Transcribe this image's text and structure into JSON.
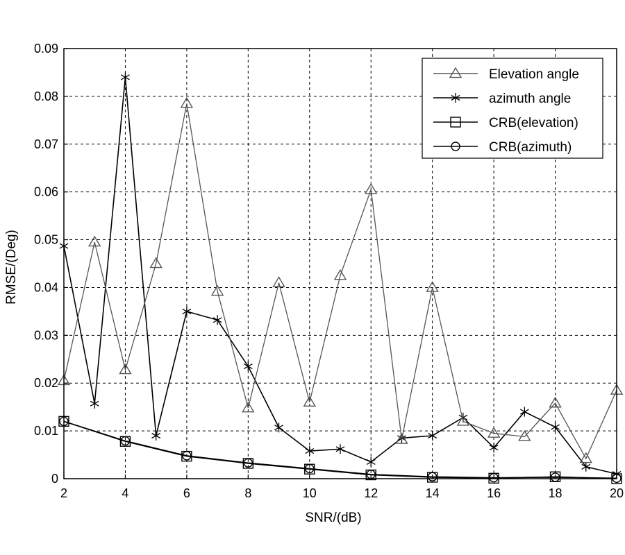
{
  "chart_data": {
    "type": "line",
    "title": "",
    "xlabel": "SNR/(dB)",
    "ylabel": "RMSE/(Deg)",
    "xlim": [
      2,
      20
    ],
    "ylim": [
      0,
      0.09
    ],
    "xticks": [
      2,
      4,
      6,
      8,
      10,
      12,
      14,
      16,
      18,
      20
    ],
    "xtick_labels": [
      "2",
      "4",
      "6",
      "8",
      "10",
      "12",
      "14",
      "16",
      "18",
      "20"
    ],
    "yticks": [
      0,
      0.01,
      0.02,
      0.03,
      0.04,
      0.05,
      0.06,
      0.07,
      0.08,
      0.09
    ],
    "ytick_labels": [
      "0",
      "0.01",
      "0.02",
      "0.03",
      "0.04",
      "0.05",
      "0.06",
      "0.07",
      "0.08",
      "0.09"
    ],
    "grid": true,
    "grid_style": "dashed",
    "legend_position": "top-right",
    "series": [
      {
        "name": "Elevation angle",
        "marker": "triangle",
        "color": "#555555",
        "x": [
          2,
          3,
          4,
          5,
          6,
          7,
          8,
          9,
          10,
          11,
          12,
          13,
          14,
          15,
          16,
          17,
          18,
          19,
          20
        ],
        "values": [
          0.0205,
          0.0495,
          0.0228,
          0.045,
          0.0785,
          0.0392,
          0.0148,
          0.041,
          0.016,
          0.0425,
          0.0605,
          0.0082,
          0.04,
          0.012,
          0.0095,
          0.0088,
          0.0158,
          0.0042,
          0.0185
        ]
      },
      {
        "name": "azimuth angle",
        "marker": "star",
        "color": "#000000",
        "x": [
          2,
          3,
          4,
          5,
          6,
          7,
          8,
          9,
          10,
          11,
          12,
          13,
          14,
          15,
          16,
          17,
          18,
          19,
          20
        ],
        "values": [
          0.0487,
          0.0157,
          0.084,
          0.009,
          0.035,
          0.0332,
          0.0235,
          0.0107,
          0.0058,
          0.0062,
          0.0035,
          0.0085,
          0.009,
          0.0128,
          0.0065,
          0.014,
          0.0108,
          0.0025,
          0.001
        ]
      },
      {
        "name": "CRB(elevation)",
        "marker": "square",
        "color": "#000000",
        "x": [
          2,
          4,
          6,
          8,
          10,
          12,
          14,
          16,
          18,
          20
        ],
        "values": [
          0.012,
          0.0078,
          0.0047,
          0.0032,
          0.002,
          0.0008,
          0.0003,
          0.0001,
          0.0004,
          0.0
        ]
      },
      {
        "name": "CRB(azimuth)",
        "marker": "circle",
        "color": "#000000",
        "x": [
          2,
          4,
          6,
          8,
          10,
          12,
          14,
          16,
          18,
          20
        ],
        "values": [
          0.012,
          0.0079,
          0.0048,
          0.0033,
          0.0021,
          0.0009,
          0.0004,
          0.0002,
          0.0003,
          0.0001
        ]
      }
    ]
  }
}
